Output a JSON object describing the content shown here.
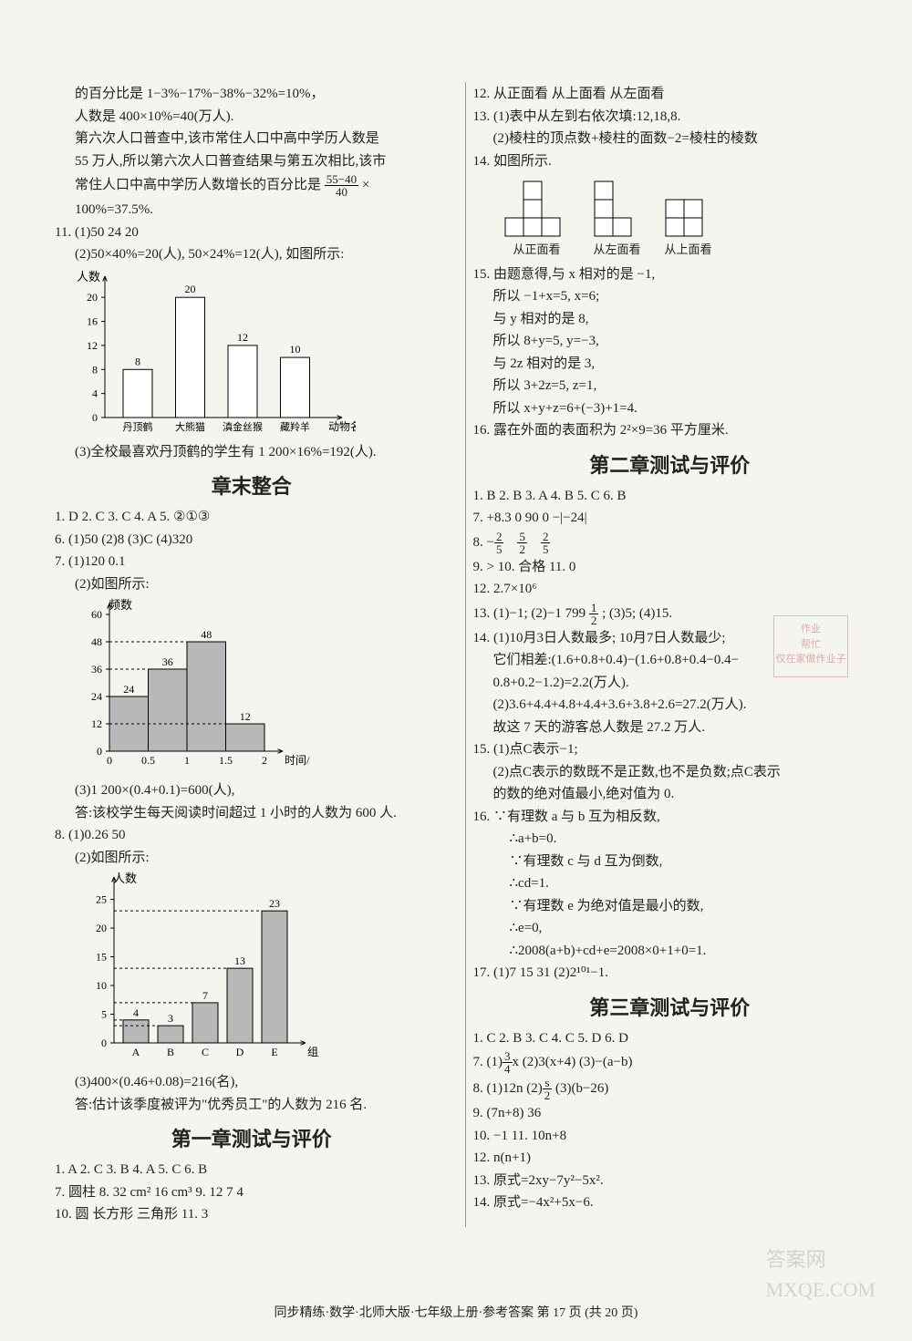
{
  "left": {
    "p1": "的百分比是 1−3%−17%−38%−32%=10%，",
    "p2": "人数是 400×10%=40(万人).",
    "p3": "第六次人口普查中,该市常住人口中高中学历人数是",
    "p4": "55 万人,所以第六次人口普查结果与第五次相比,该市",
    "p5a": "常住人口中高中学历人数增长的百分比是",
    "p5_frac_n": "55−40",
    "p5_frac_d": "40",
    "p5b": "×",
    "p6": "100%=37.5%.",
    "p11": "11. (1)50   24   20",
    "p11_2": "(2)50×40%=20(人), 50×24%=12(人), 如图所示:",
    "chart1": {
      "y_label": "人数",
      "x_label": "动物名称",
      "y_max": 22,
      "y_ticks": [
        0,
        4,
        8,
        12,
        16,
        20
      ],
      "categories": [
        "丹顶鹤",
        "大熊猫",
        "滇金丝猴",
        "藏羚羊"
      ],
      "values": [
        8,
        20,
        12,
        10
      ],
      "bar_color": "#ffffff",
      "border_color": "#000000"
    },
    "p11_3": "(3)全校最喜欢丹顶鹤的学生有 1 200×16%=192(人).",
    "title1": "章末整合",
    "zm1": "1. D   2. C   3. C   4. A   5. ②①③",
    "zm6": "6. (1)50   (2)8   (3)C   (4)320",
    "zm7": "7. (1)120   0.1",
    "zm7_2": "(2)如图所示:",
    "chart2": {
      "y_label": "频数",
      "x_label": "时间/h",
      "y_ticks": [
        0,
        12,
        24,
        36,
        48,
        60
      ],
      "x_ticks": [
        "0",
        "0.5",
        "1",
        "1.5",
        "2"
      ],
      "values": [
        24,
        36,
        48,
        12
      ],
      "bar_color": "#b8b8b8",
      "border_color": "#000000"
    },
    "zm7_3a": "(3)1 200×(0.4+0.1)=600(人),",
    "zm7_3b": "答:该校学生每天阅读时间超过 1 小时的人数为 600 人.",
    "zm8": "8. (1)0.26   50",
    "zm8_2": "(2)如图所示:",
    "chart3": {
      "y_label": "人数",
      "x_label": "组别",
      "y_ticks": [
        0,
        5,
        10,
        15,
        20,
        25
      ],
      "categories": [
        "A",
        "B",
        "C",
        "D",
        "E"
      ],
      "values": [
        4,
        3,
        7,
        13,
        23
      ],
      "bar_color": "#b8b8b8",
      "border_color": "#000000"
    },
    "zm8_3a": "(3)400×(0.46+0.08)=216(名),",
    "zm8_3b": "答:估计该季度被评为\"优秀员工\"的人数为 216 名.",
    "title2": "第一章测试与评价",
    "t1_1": "1. A   2. C   3. B   4. A   5. C   6. B",
    "t1_7": "7. 圆柱   8. 32 cm²   16 cm³   9. 12   7   4",
    "t1_10": "10. 圆   长方形   三角形   11. 3"
  },
  "right": {
    "r12": "12. 从正面看   从上面看   从左面看",
    "r13": "13. (1)表中从左到右依次填:12,18,8.",
    "r13b": "(2)棱柱的顶点数+棱柱的面数−2=棱柱的棱数",
    "r14": "14. 如图所示.",
    "view_labels": [
      "从正面看",
      "从左面看",
      "从上面看"
    ],
    "r15a": "15. 由题意得,与 x 相对的是 −1,",
    "r15b": "所以 −1+x=5, x=6;",
    "r15c": "与 y 相对的是 8,",
    "r15d": "所以 8+y=5, y=−3,",
    "r15e": "与 2z 相对的是 3,",
    "r15f": "所以 3+2z=5, z=1,",
    "r15g": "所以 x+y+z=6+(−3)+1=4.",
    "r16": "16. 露在外面的表面积为 2²×9=36 平方厘米.",
    "title3": "第二章测试与评价",
    "c2_1": "1. B   2. B   3. A   4. B   5. C   6. B",
    "c2_7": "7. +8.3   0   90   0   −|−24|",
    "c2_8a": "8. −",
    "c2_8_f1n": "2",
    "c2_8_f1d": "5",
    "c2_8_f2n": "5",
    "c2_8_f2d": "2",
    "c2_8_f3n": "2",
    "c2_8_f3d": "5",
    "c2_9": "9. >   10. 合格   11. 0",
    "c2_12": "12. 2.7×10⁶",
    "c2_13a": "13. (1)−1; (2)−1 799",
    "c2_13_fn": "1",
    "c2_13_fd": "2",
    "c2_13b": "; (3)5; (4)15.",
    "c2_14a": "14. (1)10月3日人数最多; 10月7日人数最少;",
    "c2_14b": "它们相差:(1.6+0.8+0.4)−(1.6+0.8+0.4−0.4−",
    "c2_14c": "0.8+0.2−1.2)=2.2(万人).",
    "c2_14d": "(2)3.6+4.4+4.8+4.4+3.6+3.8+2.6=27.2(万人).",
    "c2_14e": "故这 7 天的游客总人数是 27.2 万人.",
    "c2_15a": "15. (1)点C表示−1;",
    "c2_15b": "(2)点C表示的数既不是正数,也不是负数;点C表示",
    "c2_15c": "的数的绝对值最小,绝对值为 0.",
    "c2_16a": "16. ∵有理数 a 与 b 互为相反数,",
    "c2_16b": "∴a+b=0.",
    "c2_16c": "∵有理数 c 与 d 互为倒数,",
    "c2_16d": "∴cd=1.",
    "c2_16e": "∵有理数 e 为绝对值是最小的数,",
    "c2_16f": "∴e=0,",
    "c2_16g": "∴2008(a+b)+cd+e=2008×0+1+0=1.",
    "c2_17": "17. (1)7   15   31   (2)2¹⁰¹−1.",
    "title4": "第三章测试与评价",
    "c3_1": "1. C   2. B   3. C   4. C   5. D   6. D",
    "c3_7a": "7. (1)",
    "c3_7_fn": "3",
    "c3_7_fd": "4",
    "c3_7b": "x   (2)3(x+4)   (3)−(a−b)",
    "c3_8a": "8. (1)12n   (2)",
    "c3_8_fn": "s",
    "c3_8_fd": "2",
    "c3_8b": "   (3)(b−26)",
    "c3_9": "9. (7n+8)   36",
    "c3_10": "10. −1   11. 10n+8",
    "c3_12": "12. n(n+1)",
    "c3_13": "13. 原式=2xy−7y²−5x².",
    "c3_14": "14. 原式=−4x²+5x−6."
  },
  "footer": {
    "center": "同步精练·数学·北师大版·七年级上册·参考答案   第 17 页 (共 20 页)"
  },
  "stamp": {
    "l1": "作业",
    "l2": "帮忙",
    "l3": "仅在家做作业子"
  },
  "views": {
    "shape1": [
      [
        1,
        0
      ],
      [
        1,
        1
      ],
      [
        0,
        2
      ],
      [
        1,
        2
      ],
      [
        2,
        2
      ]
    ],
    "shape2": [
      [
        0,
        0
      ],
      [
        0,
        1
      ],
      [
        0,
        2
      ],
      [
        1,
        2
      ]
    ],
    "shape3": [
      [
        0,
        0
      ],
      [
        1,
        0
      ],
      [
        0,
        1
      ],
      [
        1,
        1
      ]
    ],
    "cell": 20
  }
}
